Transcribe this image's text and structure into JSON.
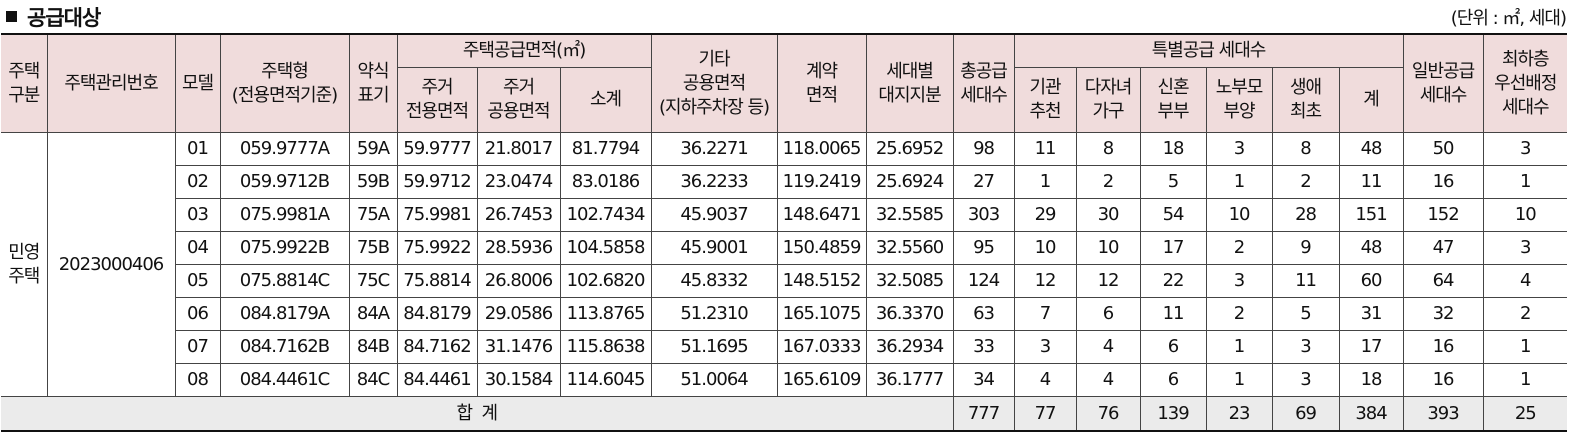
{
  "heading": {
    "title": "공급대상",
    "unit": "(단위 : ㎡, 세대)"
  },
  "header": {
    "housing_type": [
      "주택",
      "구분"
    ],
    "mgmt_no": "주택관리번호",
    "model": "모델",
    "house_type": [
      "주택형",
      "(전용면적기준)"
    ],
    "abbr": [
      "약식",
      "표기"
    ],
    "supply_area": "주택공급면적(㎡)",
    "excl_area": [
      "주거",
      "전용면적"
    ],
    "common_area": [
      "주거",
      "공용면적"
    ],
    "subtotal": "소계",
    "other_area": [
      "기타",
      "공용면적",
      "(지하주차장 등)"
    ],
    "contract_area": [
      "계약",
      "면적"
    ],
    "land_share": [
      "세대별",
      "대지지분"
    ],
    "total_units": [
      "총공급",
      "세대수"
    ],
    "special": "특별공급 세대수",
    "inst": [
      "기관",
      "추천"
    ],
    "multi_child": [
      "다자녀",
      "가구"
    ],
    "newlywed": [
      "신혼",
      "부부"
    ],
    "elderly": [
      "노부모",
      "부양"
    ],
    "first_time": [
      "생애",
      "최초"
    ],
    "special_sum": "계",
    "general": [
      "일반공급",
      "세대수"
    ],
    "lowest_floor": [
      "최하층",
      "우선배정",
      "세대수"
    ]
  },
  "group": {
    "housing_type": [
      "민영",
      "주택"
    ],
    "mgmt_no": "2023000406"
  },
  "rows": [
    {
      "model": "01",
      "type": "059.9777A",
      "abbr": "59A",
      "excl": "59.9777",
      "common": "21.8017",
      "sub": "81.7794",
      "other": "36.2271",
      "contract": "118.0065",
      "land": "25.6952",
      "total": "98",
      "inst": "11",
      "multi": "8",
      "newly": "18",
      "elder": "3",
      "first": "8",
      "ssum": "48",
      "general": "50",
      "lowest": "3"
    },
    {
      "model": "02",
      "type": "059.9712B",
      "abbr": "59B",
      "excl": "59.9712",
      "common": "23.0474",
      "sub": "83.0186",
      "other": "36.2233",
      "contract": "119.2419",
      "land": "25.6924",
      "total": "27",
      "inst": "1",
      "multi": "2",
      "newly": "5",
      "elder": "1",
      "first": "2",
      "ssum": "11",
      "general": "16",
      "lowest": "1"
    },
    {
      "model": "03",
      "type": "075.9981A",
      "abbr": "75A",
      "excl": "75.9981",
      "common": "26.7453",
      "sub": "102.7434",
      "other": "45.9037",
      "contract": "148.6471",
      "land": "32.5585",
      "total": "303",
      "inst": "29",
      "multi": "30",
      "newly": "54",
      "elder": "10",
      "first": "28",
      "ssum": "151",
      "general": "152",
      "lowest": "10"
    },
    {
      "model": "04",
      "type": "075.9922B",
      "abbr": "75B",
      "excl": "75.9922",
      "common": "28.5936",
      "sub": "104.5858",
      "other": "45.9001",
      "contract": "150.4859",
      "land": "32.5560",
      "total": "95",
      "inst": "10",
      "multi": "10",
      "newly": "17",
      "elder": "2",
      "first": "9",
      "ssum": "48",
      "general": "47",
      "lowest": "3"
    },
    {
      "model": "05",
      "type": "075.8814C",
      "abbr": "75C",
      "excl": "75.8814",
      "common": "26.8006",
      "sub": "102.6820",
      "other": "45.8332",
      "contract": "148.5152",
      "land": "32.5085",
      "total": "124",
      "inst": "12",
      "multi": "12",
      "newly": "22",
      "elder": "3",
      "first": "11",
      "ssum": "60",
      "general": "64",
      "lowest": "4"
    },
    {
      "model": "06",
      "type": "084.8179A",
      "abbr": "84A",
      "excl": "84.8179",
      "common": "29.0586",
      "sub": "113.8765",
      "other": "51.2310",
      "contract": "165.1075",
      "land": "36.3370",
      "total": "63",
      "inst": "7",
      "multi": "6",
      "newly": "11",
      "elder": "2",
      "first": "5",
      "ssum": "31",
      "general": "32",
      "lowest": "2"
    },
    {
      "model": "07",
      "type": "084.7162B",
      "abbr": "84B",
      "excl": "84.7162",
      "common": "31.1476",
      "sub": "115.8638",
      "other": "51.1695",
      "contract": "167.0333",
      "land": "36.2934",
      "total": "33",
      "inst": "3",
      "multi": "4",
      "newly": "6",
      "elder": "1",
      "first": "3",
      "ssum": "17",
      "general": "16",
      "lowest": "1"
    },
    {
      "model": "08",
      "type": "084.4461C",
      "abbr": "84C",
      "excl": "84.4461",
      "common": "30.1584",
      "sub": "114.6045",
      "other": "51.0064",
      "contract": "165.6109",
      "land": "36.1777",
      "total": "34",
      "inst": "4",
      "multi": "4",
      "newly": "6",
      "elder": "1",
      "first": "3",
      "ssum": "18",
      "general": "16",
      "lowest": "1"
    }
  ],
  "total": {
    "label": "합  계",
    "total": "777",
    "inst": "77",
    "multi": "76",
    "newly": "139",
    "elder": "23",
    "first": "69",
    "ssum": "384",
    "general": "393",
    "lowest": "25"
  }
}
